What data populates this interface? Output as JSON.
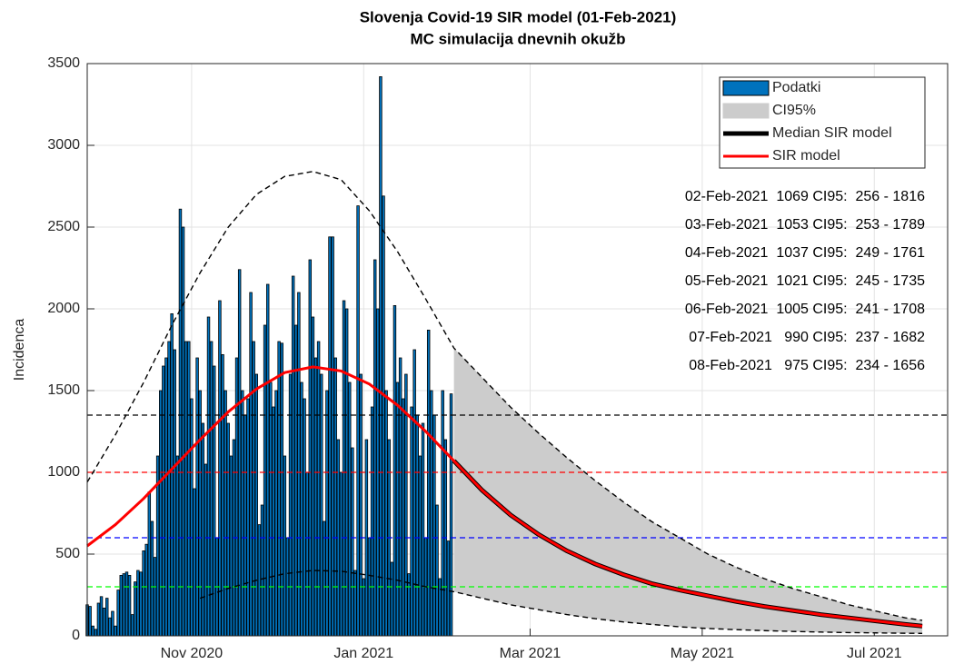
{
  "chart_data": {
    "type": "bar",
    "title": [
      "Slovenja Covid-19 SIR model (01-Feb-2021)",
      "MC simulacija dnevnih okužb"
    ],
    "ylabel": "Incidenca",
    "xlim": [
      0,
      305
    ],
    "xticks": [
      {
        "value": 37,
        "label": "Nov 2020"
      },
      {
        "value": 98,
        "label": "Jan 2021"
      },
      {
        "value": 157,
        "label": "Mar 2021"
      },
      {
        "value": 218,
        "label": "May 2021"
      },
      {
        "value": 279,
        "label": "Jul 2021"
      }
    ],
    "ylim": [
      0,
      3500
    ],
    "yticks": [
      0,
      500,
      1000,
      1500,
      2000,
      2500,
      3000,
      3500
    ],
    "grid": true,
    "legend": "upper right",
    "bars": {
      "name": "Podatki",
      "color": "#0072bd",
      "x": [
        0,
        1,
        2,
        3,
        4,
        5,
        6,
        7,
        8,
        9,
        10,
        11,
        12,
        13,
        14,
        15,
        16,
        17,
        18,
        19,
        20,
        21,
        22,
        23,
        24,
        25,
        26,
        27,
        28,
        29,
        30,
        31,
        32,
        33,
        34,
        35,
        36,
        37,
        38,
        39,
        40,
        41,
        42,
        43,
        44,
        45,
        46,
        47,
        48,
        49,
        50,
        51,
        52,
        53,
        54,
        55,
        56,
        57,
        58,
        59,
        60,
        61,
        62,
        63,
        64,
        65,
        66,
        67,
        68,
        69,
        70,
        71,
        72,
        73,
        74,
        75,
        76,
        77,
        78,
        79,
        80,
        81,
        82,
        83,
        84,
        85,
        86,
        87,
        88,
        89,
        90,
        91,
        92,
        93,
        94,
        95,
        96,
        97,
        98,
        99,
        100,
        101,
        102,
        103,
        104,
        105,
        106,
        107,
        108,
        109,
        110,
        111,
        112,
        113,
        114,
        115,
        116,
        117,
        118,
        119,
        120,
        121,
        122,
        123,
        124,
        125,
        126,
        127,
        128,
        129
      ],
      "values": [
        190,
        180,
        60,
        40,
        200,
        240,
        170,
        230,
        110,
        150,
        60,
        280,
        370,
        380,
        390,
        370,
        130,
        330,
        400,
        390,
        520,
        560,
        880,
        700,
        480,
        1100,
        1500,
        1650,
        1700,
        1800,
        1970,
        1750,
        1100,
        2610,
        2500,
        1800,
        1800,
        1450,
        900,
        1700,
        1500,
        1300,
        1050,
        1950,
        1800,
        1650,
        600,
        2050,
        1720,
        1500,
        1300,
        1100,
        1200,
        1700,
        2240,
        1500,
        1350,
        1450,
        2100,
        1800,
        1600,
        680,
        800,
        1900,
        2150,
        1550,
        1400,
        1500,
        1800,
        1790,
        1100,
        600,
        1600,
        2200,
        1900,
        2100,
        1550,
        1450,
        1000,
        2300,
        1950,
        1700,
        1800,
        1600,
        700,
        1500,
        2440,
        2440,
        1700,
        1200,
        1000,
        2050,
        2000,
        1550,
        1150,
        400,
        2630,
        1600,
        350,
        1200,
        600,
        1400,
        2300,
        2000,
        3420,
        2690,
        1500,
        1200,
        450,
        2020,
        1550,
        1700,
        1450,
        1600,
        380,
        1400,
        1750,
        1350,
        1100,
        1300,
        600,
        1870,
        1500,
        1350,
        800,
        350,
        1500,
        1200,
        580,
        1480
      ]
    },
    "ci_band": {
      "name": "CI95%",
      "color": "#cccccc"
    },
    "line_x": [
      0,
      10,
      20,
      30,
      40,
      50,
      60,
      70,
      80,
      90,
      100,
      110,
      120,
      130,
      140,
      150,
      160,
      170,
      180,
      190,
      200,
      210,
      220,
      230,
      240,
      250,
      260,
      270,
      280,
      290,
      296
    ],
    "lines": [
      {
        "color": "#000000",
        "style": "dashed",
        "values": [
          940,
          1230,
          1550,
          1900,
          2220,
          2500,
          2700,
          2810,
          2840,
          2790,
          2600,
          2350,
          2060,
          1760,
          1580,
          1400,
          1240,
          1090,
          950,
          820,
          700,
          600,
          500,
          420,
          350,
          290,
          240,
          190,
          150,
          110,
          95
        ]
      },
      {
        "color": "#000000",
        "style": "dashed",
        "values": [
          null,
          null,
          null,
          null,
          230,
          290,
          340,
          380,
          400,
          395,
          370,
          340,
          300,
          270,
          230,
          190,
          160,
          130,
          105,
          85,
          70,
          55,
          45,
          38,
          32,
          27,
          23,
          20,
          18,
          16,
          15
        ]
      },
      {
        "name": "Median SIR model",
        "color": "#000000",
        "style": "solid",
        "width": 5,
        "values": [
          null,
          null,
          null,
          null,
          null,
          null,
          null,
          null,
          null,
          null,
          null,
          null,
          null,
          1070,
          890,
          740,
          620,
          520,
          440,
          375,
          320,
          280,
          245,
          210,
          180,
          155,
          130,
          110,
          90,
          70,
          60
        ]
      },
      {
        "name": "SIR model",
        "color": "#ff0000",
        "style": "solid",
        "width": 3,
        "values": [
          550,
          680,
          840,
          1020,
          1200,
          1370,
          1510,
          1610,
          1645,
          1620,
          1540,
          1410,
          1250,
          1070,
          890,
          740,
          620,
          520,
          440,
          375,
          320,
          280,
          245,
          210,
          180,
          155,
          130,
          110,
          90,
          70,
          60
        ]
      }
    ],
    "hlines": [
      {
        "value": 1350,
        "color": "#000000"
      },
      {
        "value": 1000,
        "color": "#ff0000"
      },
      {
        "value": 600,
        "color": "#0000ff"
      },
      {
        "value": 300,
        "color": "#00ff00"
      }
    ],
    "annotations": [
      "02-Feb-2021  1069 CI95:  256 - 1816",
      "03-Feb-2021  1053 CI95:  253 - 1789",
      "04-Feb-2021  1037 CI95:  249 - 1761",
      "05-Feb-2021  1021 CI95:  245 - 1735",
      "06-Feb-2021  1005 CI95:  241 - 1708",
      "07-Feb-2021   990 CI95:  237 - 1682",
      "08-Feb-2021   975 CI95:  234 - 1656"
    ]
  }
}
